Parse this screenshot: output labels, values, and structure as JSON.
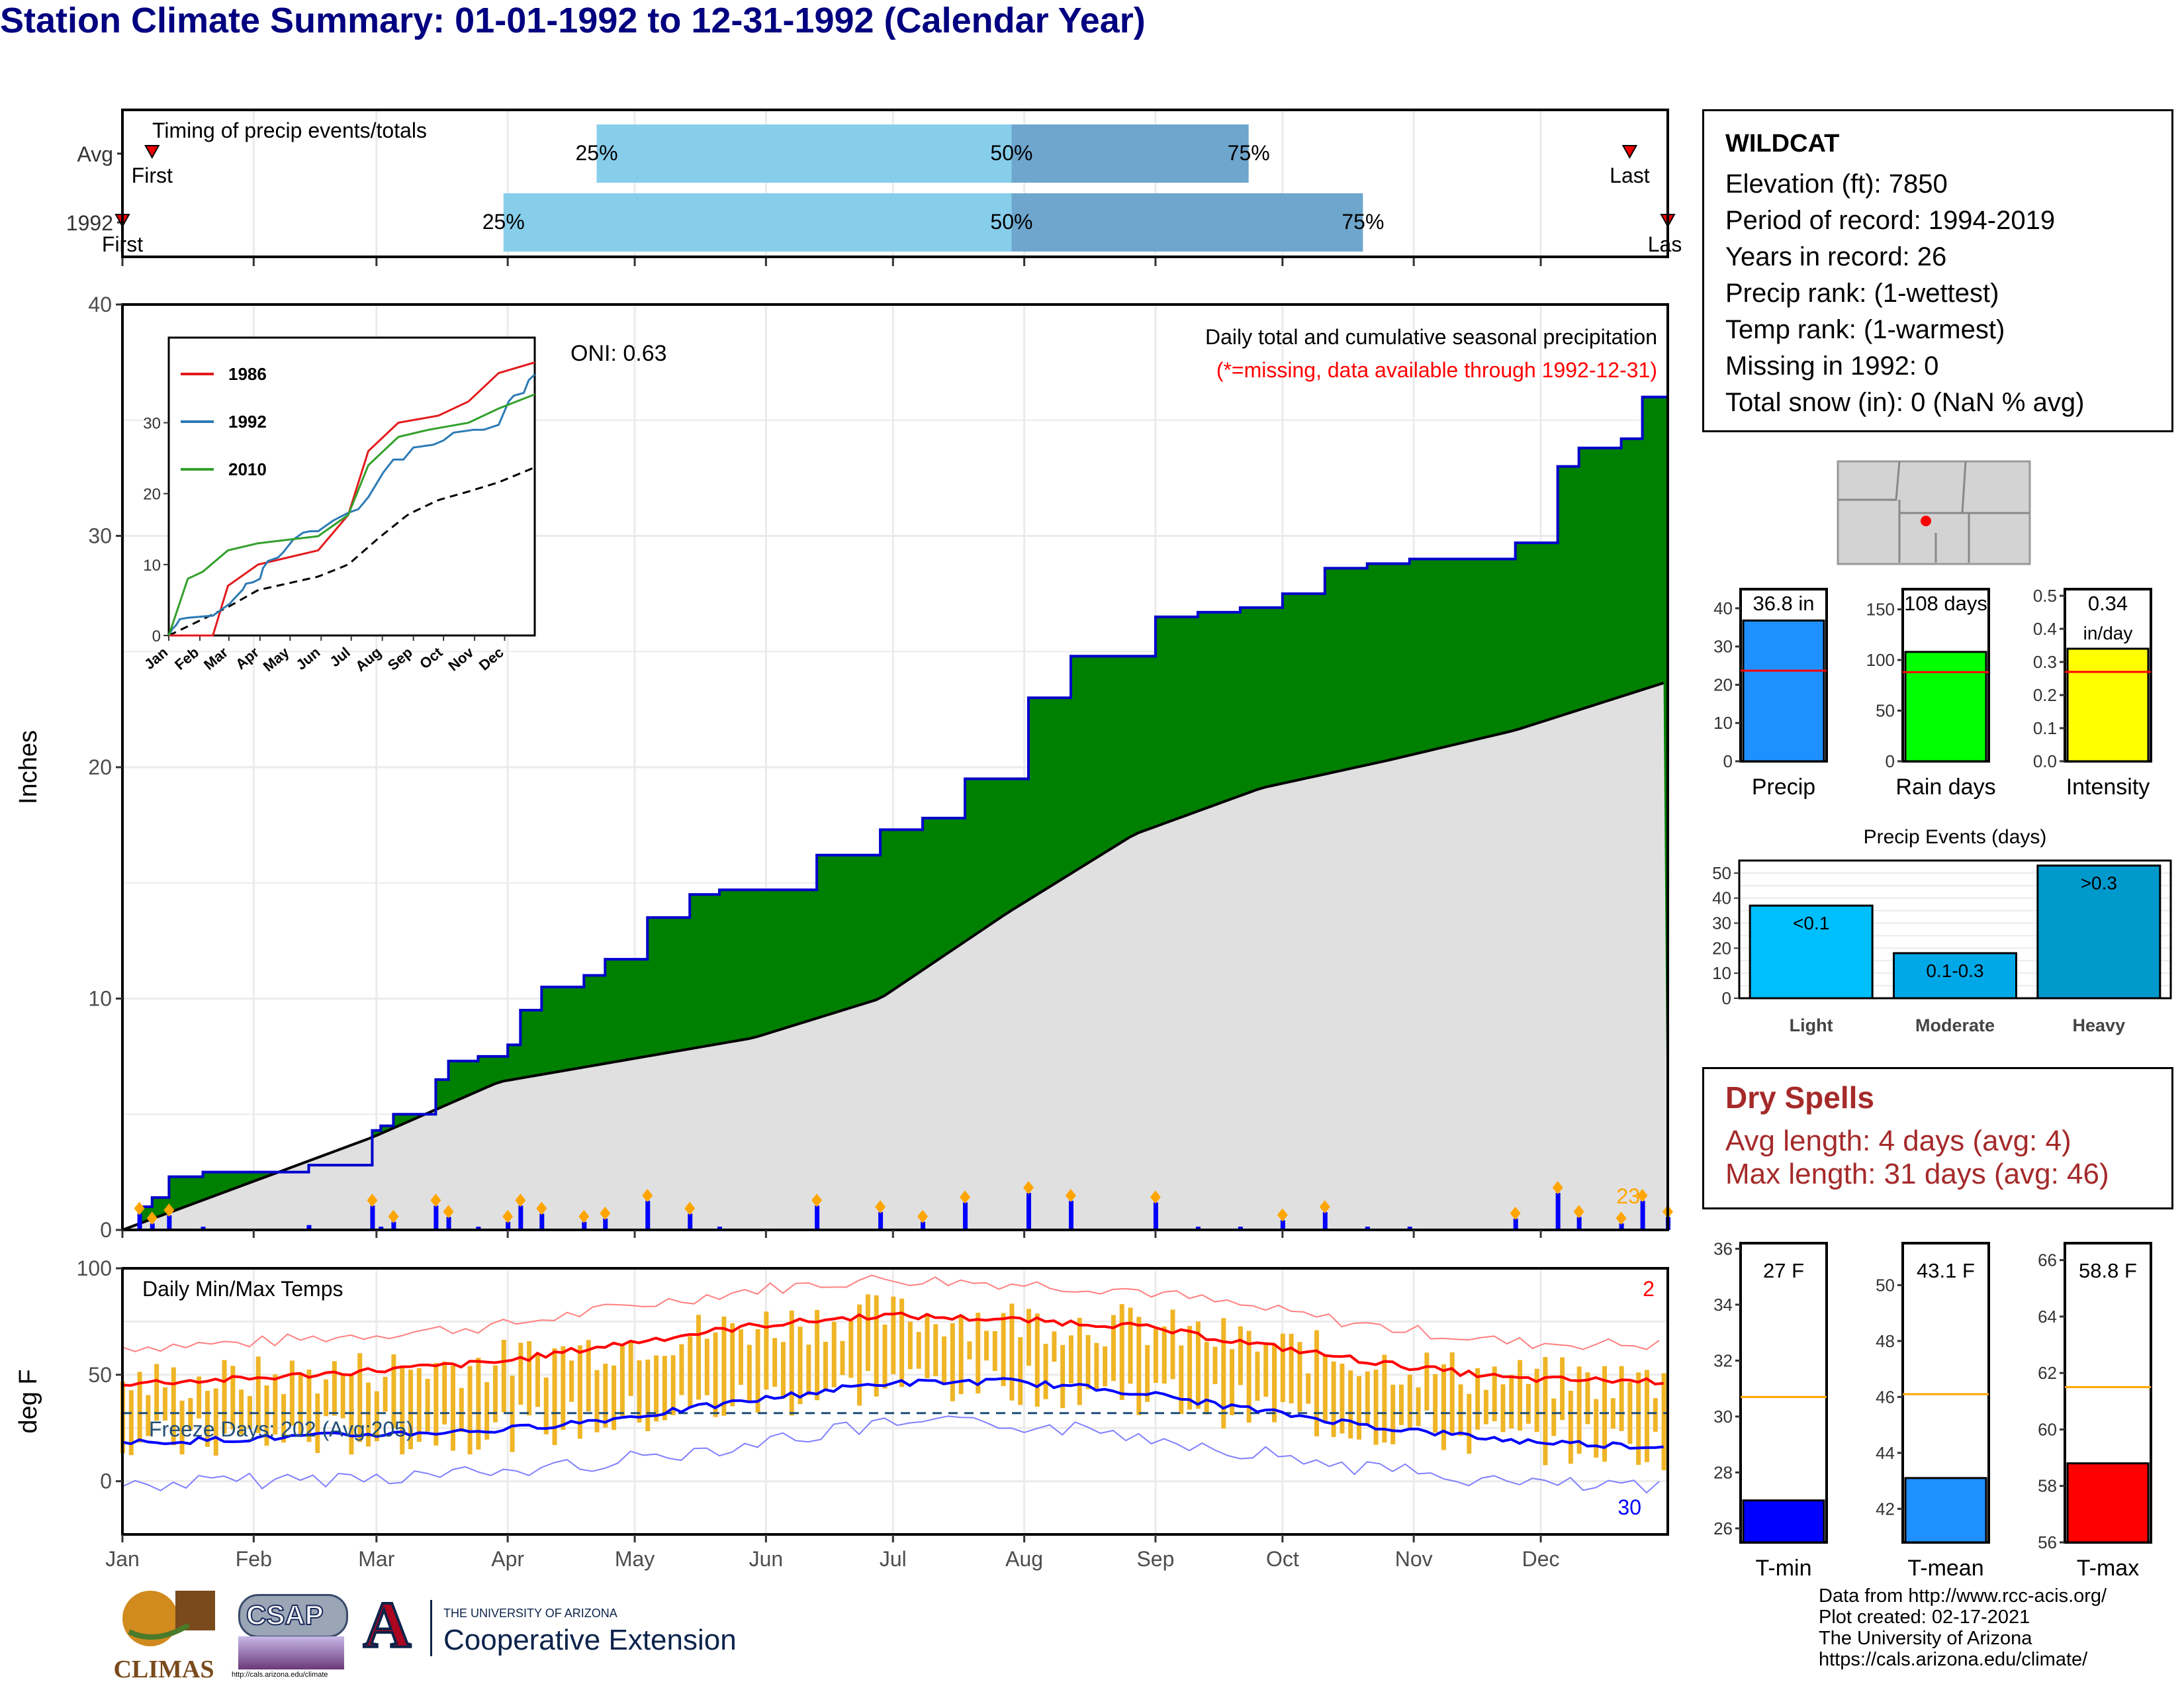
{
  "title": "Station Climate Summary: 01-01-1992 to 12-31-1992 (Calendar Year)",
  "colors": {
    "title": "#000080",
    "green": "#008000",
    "cum_line": "#0000cc",
    "avg_fill": "#e0e0e0",
    "precip_bar": "#0000ff",
    "precip_marker": "#ffa500",
    "temp_bar": "#efb526",
    "tmax_line": "#ff0000",
    "tmin_line": "#0000ff",
    "dry_text": "#a52a2a",
    "timing_light": "#87ceeb",
    "timing_dark": "#6ea6cd"
  },
  "timing": {
    "title": "Timing of precip events/totals",
    "rows": [
      {
        "label": "Avg",
        "first_label": "First",
        "last_label": "Last",
        "p25_label": "25%",
        "p50_label": "50%",
        "p75_label": "75%",
        "first_doy": 8,
        "last_doy": 357,
        "p25_doy": 113,
        "p50_doy": 211,
        "p75_doy": 267
      },
      {
        "label": "1992",
        "first_label": "First",
        "last_label": "Last",
        "p25_label": "25%",
        "p50_label": "50%",
        "p75_label": "75%",
        "first_doy": 1,
        "last_doy": 366,
        "p25_doy": 91,
        "p50_doy": 211,
        "p75_doy": 294
      }
    ]
  },
  "precip_panel": {
    "ylabel": "Inches",
    "yticks": [
      "0",
      "10",
      "20",
      "30",
      "40"
    ],
    "header": "Daily total and cumulative seasonal precipitation",
    "missing_note": "(*=missing, data available through 1992-12-31)",
    "oni": "ONI: 0.63",
    "count_label": "23"
  },
  "months": [
    "Jan",
    "Feb",
    "Mar",
    "Apr",
    "May",
    "Jun",
    "Jul",
    "Aug",
    "Sep",
    "Oct",
    "Nov",
    "Dec"
  ],
  "inset": {
    "legend": [
      "1986",
      "1992",
      "2010"
    ],
    "legend_colors": [
      "#e31a1c",
      "#2c7bb6",
      "#33a02c"
    ],
    "yticks": [
      "0",
      "10",
      "20",
      "30"
    ],
    "months": [
      "Jan",
      "Feb",
      "Mar",
      "Apr",
      "May",
      "Jun",
      "Jul",
      "Aug",
      "Sep",
      "Oct",
      "Nov",
      "Dec"
    ]
  },
  "temp_panel": {
    "ylabel": "deg F",
    "title": "Daily Min/Max Temps",
    "yticks": [
      "0",
      "50",
      "100"
    ],
    "freeze": "Freeze Days: 202 (Avg:205)",
    "count_max": "2",
    "count_min": "30"
  },
  "info": {
    "station": "WILDCAT",
    "lines": [
      "Elevation (ft): 7850",
      "Period of record: 1994-2019",
      "Years in record: 26",
      "Precip rank:  (1-wettest)",
      "Temp rank:  (1-warmest)",
      "Missing in 1992: 0",
      "Total snow (in): 0 (NaN % avg)"
    ]
  },
  "mini_bars": [
    {
      "label": "Precip",
      "value_label": "36.8 in",
      "value": 36.8,
      "avg": 23.7,
      "ymax": 45,
      "yticks": [
        "0",
        "10",
        "20",
        "30",
        "40"
      ],
      "color": "#1e90ff"
    },
    {
      "label": "Rain days",
      "value_label": "108 days",
      "value": 108,
      "avg": 88,
      "ymax": 170,
      "yticks": [
        "0",
        "50",
        "100",
        "150"
      ],
      "color": "#00ff00"
    },
    {
      "label": "Intensity",
      "value_label": "0.34",
      "value_label2": "in/day",
      "value": 0.34,
      "avg": 0.27,
      "ymax": 0.52,
      "yticks": [
        "0.0",
        "0.1",
        "0.2",
        "0.3",
        "0.4",
        "0.5"
      ],
      "color": "#ffff00"
    }
  ],
  "events": {
    "title": "Precip Events (days)",
    "yticks": [
      "0",
      "10",
      "20",
      "30",
      "40",
      "50"
    ],
    "categories": [
      "Light",
      "Moderate",
      "Heavy"
    ],
    "bar_labels": [
      "<0.1",
      "0.1-0.3",
      ">0.3"
    ],
    "values": [
      37,
      18,
      53
    ],
    "colors": [
      "#00bfff",
      "#00a8e8",
      "#0099cc"
    ]
  },
  "dry_spells": {
    "title": "Dry Spells",
    "lines": [
      "Avg length: 4 days (avg: 4)",
      "Max length: 31 days (avg: 46)"
    ]
  },
  "temp_bars": [
    {
      "label": "T-min",
      "value_label": "27 F",
      "value": 27,
      "avg": 30.7,
      "ymin": 25.5,
      "ymax": 36.2,
      "yticks": [
        "26",
        "28",
        "30",
        "32",
        "34",
        "36"
      ],
      "color": "#0000ff"
    },
    {
      "label": "T-mean",
      "value_label": "43.1 F",
      "value": 43.1,
      "avg": 46.1,
      "ymin": 40.8,
      "ymax": 51.5,
      "yticks": [
        "42",
        "44",
        "46",
        "48",
        "50"
      ],
      "color": "#1e90ff"
    },
    {
      "label": "T-max",
      "value_label": "58.8 F",
      "value": 58.8,
      "avg": 61.5,
      "ymin": 56,
      "ymax": 66.6,
      "yticks": [
        "56",
        "58",
        "60",
        "62",
        "64",
        "66"
      ],
      "color": "#ff0000"
    }
  ],
  "footer": {
    "lines": [
      "Data from http://www.rcc-acis.org/",
      "Plot created: 02-17-2021",
      "The University of Arizona",
      "https://cals.arizona.edu/climate/"
    ]
  },
  "logos": {
    "climas": "CLIMAS",
    "csap": "CSAP",
    "csap_url": "http://cals.arizona.edu/climate",
    "ua_small": "THE UNIVERSITY OF ARIZONA",
    "ua_big": "Cooperative Extension",
    "ua_letter": "A"
  },
  "chart_data": [
    {
      "type": "area",
      "title": "Daily total and cumulative seasonal precipitation",
      "ylabel": "Inches",
      "ylim": [
        0,
        40
      ],
      "x_unit": "day of year 1992",
      "series": [
        {
          "name": "1992",
          "x": [
            1,
            5,
            8,
            12,
            20,
            45,
            60,
            62,
            65,
            75,
            78,
            85,
            92,
            95,
            100,
            110,
            115,
            125,
            135,
            142,
            150,
            165,
            180,
            190,
            200,
            215,
            225,
            235,
            245,
            255,
            265,
            275,
            285,
            295,
            305,
            315,
            330,
            340,
            345,
            355,
            360,
            366
          ],
          "values": [
            0,
            1.0,
            1.4,
            2.3,
            2.5,
            2.8,
            4.3,
            4.5,
            5.0,
            6.5,
            7.3,
            7.5,
            8.0,
            9.5,
            10.5,
            11.0,
            11.7,
            13.5,
            14.5,
            14.7,
            14.7,
            16.2,
            17.3,
            17.8,
            19.5,
            23.0,
            24.8,
            24.8,
            26.5,
            26.7,
            26.9,
            27.5,
            28.6,
            28.8,
            29.0,
            29.0,
            29.7,
            33.0,
            33.8,
            34.2,
            36.0,
            36.8
          ]
        },
        {
          "name": "",
          "x": [
            1,
            60,
            90,
            150,
            180,
            210,
            240,
            270,
            300,
            330,
            366
          ],
          "values": [
            0,
            4.0,
            6.4,
            8.3,
            10.0,
            13.7,
            17.1,
            19.1,
            20.3,
            21.6,
            23.7
          ]
        }
      ]
    },
    {
      "type": "line",
      "title": "Daily Min/Max Temps",
      "ylabel": "deg F",
      "ylim": [
        -25,
        100
      ],
      "x_unit": "day of year 1992",
      "series": [
        {
          "name": "",
          "x": [
            1,
            30,
            60,
            90,
            120,
            150,
            180,
            210,
            240,
            270,
            300,
            330,
            366
          ],
          "values": [
            46,
            48,
            52,
            56,
            65,
            73,
            78,
            76,
            73,
            64,
            55,
            48,
            47
          ]
        },
        {
          "name": "",
          "x": [
            1,
            30,
            60,
            90,
            120,
            150,
            180,
            210,
            240,
            270,
            300,
            330,
            366
          ],
          "values": [
            18,
            20,
            22,
            24,
            30,
            38,
            46,
            47,
            42,
            33,
            25,
            19,
            16
          ]
        }
      ],
      "freeze_threshold": 32
    },
    {
      "type": "bar",
      "title": "Precip Events (days)",
      "categories": [
        "Light",
        "Moderate",
        "Heavy"
      ],
      "values": [
        37,
        18,
        53
      ],
      "ylim": [
        0,
        55
      ]
    }
  ]
}
